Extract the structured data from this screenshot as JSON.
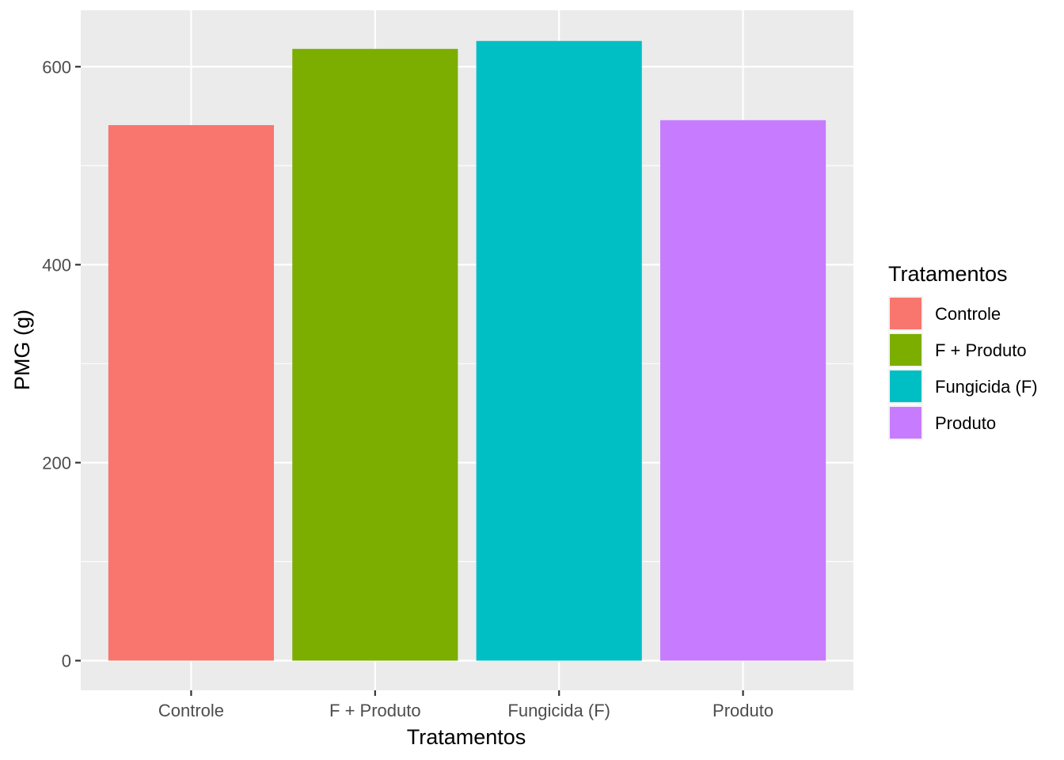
{
  "chart_data": {
    "type": "bar",
    "categories": [
      "Controle",
      "F + Produto",
      "Fungicida (F)",
      "Produto"
    ],
    "values": [
      541,
      618,
      626,
      546
    ],
    "colors": [
      "#F8766D",
      "#7CAE00",
      "#00BFC4",
      "#C77CFF"
    ],
    "xlabel": "Tratamentos",
    "ylabel": "PMG (g)",
    "ylim": [
      -30,
      657
    ],
    "yticks": [
      0,
      200,
      400,
      600
    ],
    "grid": true,
    "panel_background": "#EBEBEB",
    "legend": {
      "title": "Tratamentos",
      "placement": "right",
      "entries": [
        "Controle",
        "F + Produto",
        "Fungicida (F)",
        "Produto"
      ]
    }
  }
}
